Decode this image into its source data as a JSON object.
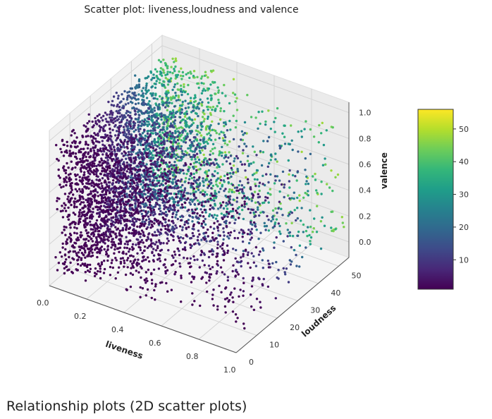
{
  "page": {
    "heading": "Relationship plots (2D scatter plots)"
  },
  "chart_data": {
    "type": "scatter",
    "title": "Scatter plot: liveness,loudness and valence",
    "xlabel": "liveness",
    "ylabel": "loudness",
    "zlabel": "valence",
    "xlim": [
      0.0,
      1.0
    ],
    "ylim": [
      0,
      55
    ],
    "zlim": [
      0.0,
      1.0
    ],
    "x_ticks": [
      "0.0",
      "0.2",
      "0.4",
      "0.6",
      "0.8",
      "1.0"
    ],
    "y_ticks": [
      "0",
      "10",
      "20",
      "30",
      "40",
      "50"
    ],
    "z_ticks": [
      "0.0",
      "0.2",
      "0.4",
      "0.6",
      "0.8",
      "1.0"
    ],
    "colorbar": {
      "colormap": "viridis",
      "range": [
        1,
        56
      ],
      "ticks": [
        "10",
        "20",
        "30",
        "40",
        "50"
      ]
    },
    "grid": true,
    "notable_points": [
      {
        "liveness": 0.95,
        "loudness": 12,
        "valence": 0.05
      },
      {
        "liveness": 0.92,
        "loudness": 8,
        "valence": 0.0
      },
      {
        "liveness": 0.72,
        "loudness": 44,
        "valence": 0.93
      },
      {
        "liveness": 0.35,
        "loudness": 50,
        "valence": 0.78
      },
      {
        "liveness": 0.12,
        "loudness": 48,
        "valence": 0.95
      }
    ],
    "distribution": {
      "dense_region": {
        "liveness": [
          0.03,
          0.4
        ],
        "loudness": [
          0,
          55
        ],
        "valence": [
          0.0,
          1.0
        ]
      },
      "sparse_tail": {
        "liveness": [
          0.4,
          1.0
        ],
        "loudness": [
          0,
          55
        ],
        "valence": [
          0.0,
          1.0
        ]
      }
    }
  }
}
